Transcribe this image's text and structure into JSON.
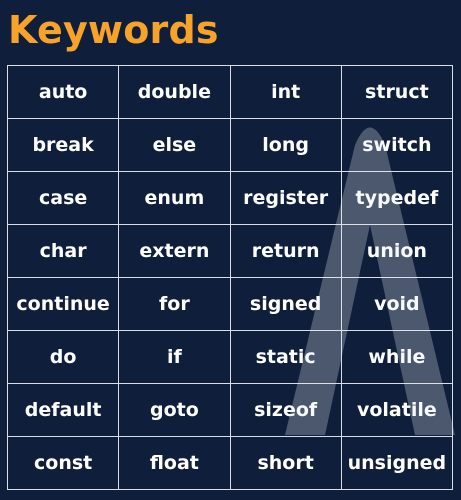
{
  "title": "Keywords",
  "colors": {
    "background": "#0f1e3a",
    "title": "#f7a229",
    "grid_line": "#d9dde6",
    "text": "#ffffff"
  },
  "keywords_table": {
    "rows": [
      [
        "auto",
        "double",
        "int",
        "struct"
      ],
      [
        "break",
        "else",
        "long",
        "switch"
      ],
      [
        "case",
        "enum",
        "register",
        "typedef"
      ],
      [
        "char",
        "extern",
        "return",
        "union"
      ],
      [
        "continue",
        "for",
        "signed",
        "void"
      ],
      [
        "do",
        "if",
        "static",
        "while"
      ],
      [
        "default",
        "goto",
        "sizeof",
        "volatile"
      ],
      [
        "const",
        "float",
        "short",
        "unsigned"
      ]
    ]
  },
  "watermark": {
    "icon": "brand-logo-watermark"
  }
}
